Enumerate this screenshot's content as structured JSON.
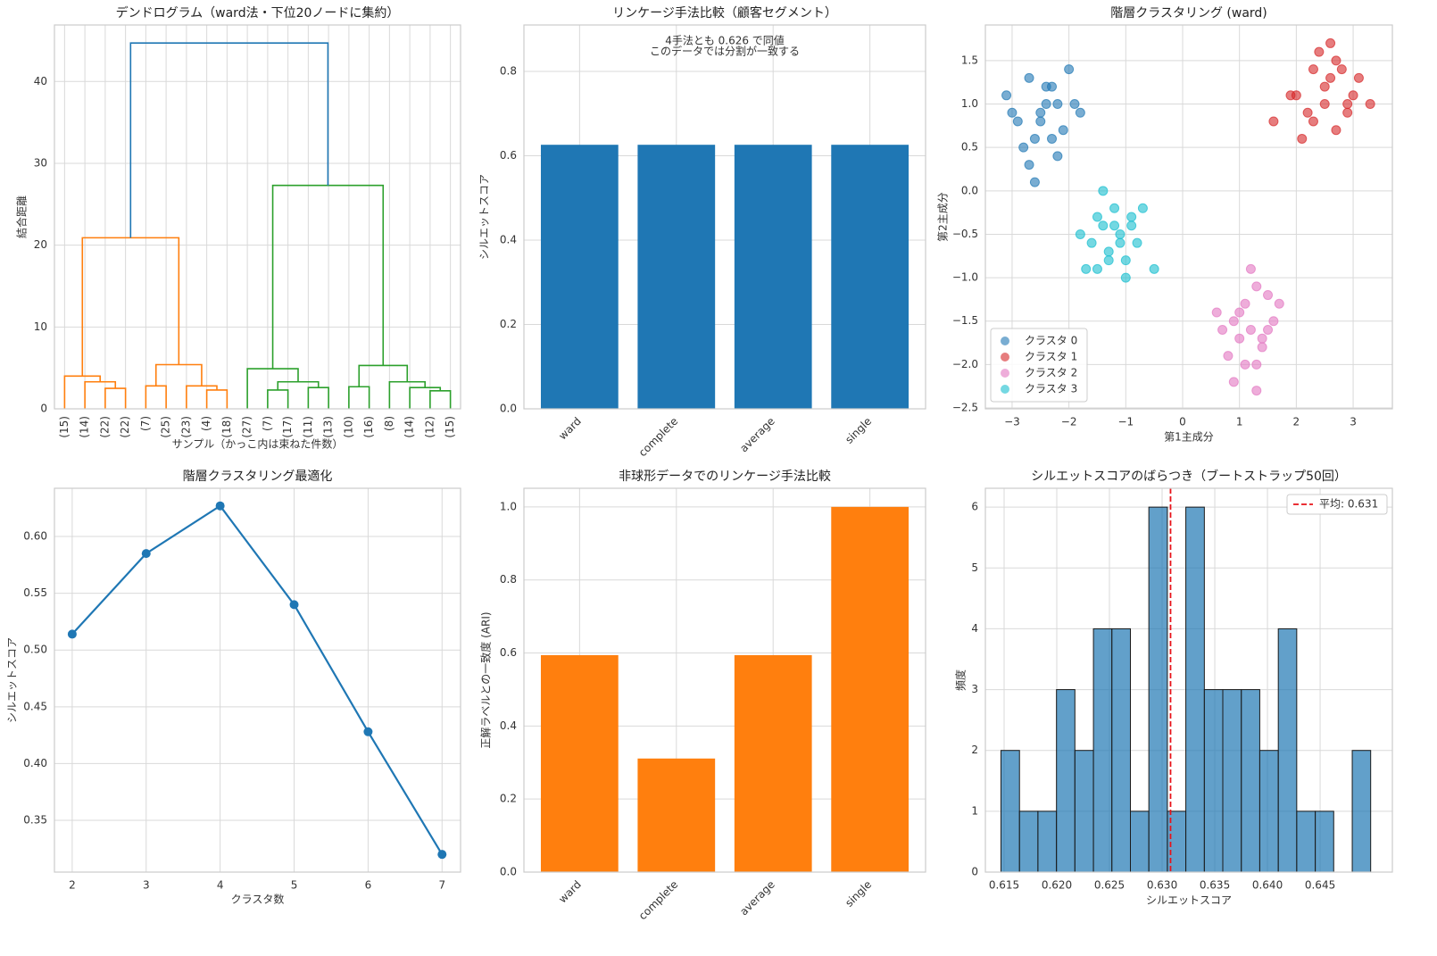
{
  "chart_data": [
    {
      "type": "dendrogram",
      "title": "デンドログラム（ward法・下位20ノードに集約）",
      "xlabel": "サンプル（かっこ内は束ねた件数）",
      "ylabel": "結合距離",
      "leaves": [
        "(15)",
        "(14)",
        "(22)",
        "(22)",
        "(7)",
        "(25)",
        "(23)",
        "(4)",
        "(18)",
        "(27)",
        "(7)",
        "(17)",
        "(11)",
        "(13)",
        "(10)",
        "(16)",
        "(8)",
        "(14)",
        "(12)",
        "(15)"
      ],
      "merges": [
        {
          "left": 2,
          "right": 3,
          "height": 2.5,
          "color": "#ff7f0e"
        },
        {
          "left": 1,
          "right": 20,
          "height": 3.3,
          "color": "#ff7f0e"
        },
        {
          "left": 0,
          "right": 21,
          "height": 4.0,
          "color": "#ff7f0e"
        },
        {
          "left": 4,
          "right": 5,
          "height": 2.8,
          "color": "#ff7f0e"
        },
        {
          "left": 7,
          "right": 8,
          "height": 2.3,
          "color": "#ff7f0e"
        },
        {
          "left": 6,
          "right": 24,
          "height": 2.8,
          "color": "#ff7f0e"
        },
        {
          "left": 23,
          "right": 25,
          "height": 5.4,
          "color": "#ff7f0e"
        },
        {
          "left": 22,
          "right": 26,
          "height": 20.9,
          "color": "#ff7f0e"
        },
        {
          "left": 10,
          "right": 11,
          "height": 2.3,
          "color": "#2ca02c"
        },
        {
          "left": 12,
          "right": 13,
          "height": 2.6,
          "color": "#2ca02c"
        },
        {
          "left": 28,
          "right": 29,
          "height": 3.3,
          "color": "#2ca02c"
        },
        {
          "left": 9,
          "right": 30,
          "height": 4.9,
          "color": "#2ca02c"
        },
        {
          "left": 14,
          "right": 15,
          "height": 2.7,
          "color": "#2ca02c"
        },
        {
          "left": 18,
          "right": 19,
          "height": 2.2,
          "color": "#2ca02c"
        },
        {
          "left": 17,
          "right": 33,
          "height": 2.6,
          "color": "#2ca02c"
        },
        {
          "left": 16,
          "right": 34,
          "height": 3.3,
          "color": "#2ca02c"
        },
        {
          "left": 32,
          "right": 35,
          "height": 5.3,
          "color": "#2ca02c"
        },
        {
          "left": 31,
          "right": 36,
          "height": 27.3,
          "color": "#2ca02c"
        },
        {
          "left": 27,
          "right": 37,
          "height": 44.7,
          "color": "#1f77b4"
        }
      ],
      "ylim": [
        0,
        46.9
      ],
      "yticks": [
        0,
        10,
        20,
        30,
        40
      ],
      "grid": true
    },
    {
      "type": "bar",
      "title": "リンケージ手法比較（顧客セグメント）",
      "ylabel": "シルエットスコア",
      "annotation": [
        "4手法とも 0.626 で同値",
        "このデータでは分割が一致する"
      ],
      "categories": [
        "ward",
        "complete",
        "average",
        "single"
      ],
      "values": [
        0.626,
        0.626,
        0.626,
        0.626
      ],
      "color": "#1f77b4",
      "ylim": [
        0,
        0.91
      ],
      "yticks": [
        {
          "value": 0,
          "label": "0.0"
        },
        0.2,
        0.4,
        0.6,
        0.8
      ],
      "grid": true
    },
    {
      "type": "scatter",
      "title": "階層クラスタリング (ward)",
      "xlabel": "第1主成分",
      "ylabel": "第2主成分",
      "series": [
        {
          "name": "クラスタ 0",
          "color": "#1f77b4",
          "x": [
            -3.1,
            -2.9,
            -2.7,
            -2.5,
            -2.3,
            -2.1,
            -1.9,
            -2.8,
            -2.6,
            -2.4,
            -2.2,
            -2.0,
            -3.0,
            -2.7,
            -2.5,
            -2.3,
            -2.6,
            -2.4,
            -2.2,
            -1.8
          ],
          "values": [
            1.1,
            0.8,
            1.3,
            0.9,
            1.2,
            0.7,
            1.0,
            0.5,
            0.6,
            1.0,
            0.4,
            1.4,
            0.9,
            0.3,
            0.8,
            0.6,
            0.1,
            1.2,
            1.0,
            0.9
          ]
        },
        {
          "name": "クラスタ 1",
          "color": "#d62728",
          "x": [
            1.6,
            1.9,
            2.1,
            2.3,
            2.5,
            2.7,
            2.9,
            3.1,
            2.2,
            2.4,
            2.6,
            2.8,
            3.0,
            2.0,
            2.3,
            2.5,
            2.7,
            2.9,
            2.6,
            3.3
          ],
          "values": [
            0.8,
            1.1,
            0.6,
            1.4,
            1.2,
            1.5,
            1.0,
            1.3,
            0.9,
            1.6,
            1.3,
            1.4,
            1.1,
            1.1,
            0.8,
            1.0,
            0.7,
            0.9,
            1.7,
            1.0
          ]
        },
        {
          "name": "クラスタ 2",
          "color": "#e377c2",
          "x": [
            0.6,
            0.8,
            0.9,
            1.0,
            1.1,
            1.2,
            1.3,
            1.4,
            1.5,
            1.6,
            0.9,
            1.1,
            1.3,
            1.5,
            1.7,
            1.0,
            1.2,
            1.4,
            0.7,
            1.3
          ],
          "values": [
            -1.4,
            -1.9,
            -1.5,
            -1.7,
            -1.3,
            -1.6,
            -2.0,
            -1.8,
            -1.2,
            -1.5,
            -2.2,
            -2.0,
            -1.1,
            -1.6,
            -1.3,
            -1.4,
            -0.9,
            -1.7,
            -1.6,
            -2.3
          ]
        },
        {
          "name": "クラスタ 3",
          "color": "#17becf",
          "x": [
            -1.8,
            -1.6,
            -1.5,
            -1.4,
            -1.3,
            -1.2,
            -1.1,
            -1.0,
            -0.9,
            -0.8,
            -1.7,
            -1.4,
            -1.2,
            -1.0,
            -0.7,
            -1.3,
            -1.1,
            -0.9,
            -0.5,
            -1.5
          ],
          "values": [
            -0.5,
            -0.6,
            -0.9,
            -0.4,
            -0.7,
            -0.2,
            -0.5,
            -0.8,
            -0.3,
            -0.6,
            -0.9,
            0.0,
            -0.4,
            -1.0,
            -0.2,
            -0.8,
            -0.6,
            -0.4,
            -0.9,
            -0.3
          ]
        }
      ],
      "xlim": [
        -3.47,
        3.69
      ],
      "xticks": [
        {
          "value": -3,
          "label": "−3"
        },
        {
          "value": -2,
          "label": "−2"
        },
        {
          "value": -1,
          "label": "−1"
        },
        0,
        1,
        2,
        3
      ],
      "ylim": [
        -2.51,
        1.91
      ],
      "yticks": [
        {
          "value": -2.5,
          "label": "−2.5"
        },
        {
          "value": -2,
          "label": "−2.0"
        },
        {
          "value": -1.5,
          "label": "−1.5"
        },
        {
          "value": -1,
          "label": "−1.0"
        },
        {
          "value": -0.5,
          "label": "−0.5"
        },
        {
          "value": 0,
          "label": "0.0"
        },
        0.5,
        {
          "value": 1,
          "label": "1.0"
        },
        1.5
      ],
      "grid": true,
      "legend": "lower left"
    },
    {
      "type": "line",
      "title": "階層クラスタリング最適化",
      "xlabel": "クラスタ数",
      "ylabel": "シルエットスコア",
      "x": [
        2,
        3,
        4,
        5,
        6,
        7
      ],
      "values": [
        0.514,
        0.585,
        0.627,
        0.54,
        0.428,
        0.32
      ],
      "color": "#1f77b4",
      "xlim": [
        1.76,
        7.25
      ],
      "xticks": [
        2,
        3,
        4,
        5,
        6,
        7
      ],
      "ylim": [
        0.3044,
        0.6425
      ],
      "yticks": [
        0.35,
        {
          "value": 0.4,
          "label": "0.40"
        },
        0.45,
        {
          "value": 0.5,
          "label": "0.50"
        },
        0.55,
        {
          "value": 0.6,
          "label": "0.60"
        }
      ],
      "grid": true
    },
    {
      "type": "bar",
      "title": "非球形データでのリンケージ手法比較",
      "ylabel": "正解ラベルとの一致度 (ARI)",
      "categories": [
        "ward",
        "complete",
        "average",
        "single"
      ],
      "values": [
        0.594,
        0.311,
        0.594,
        1.0
      ],
      "color": "#ff7f0e",
      "ylim": [
        0,
        1.051
      ],
      "yticks": [
        {
          "value": 0,
          "label": "0.0"
        },
        0.2,
        0.4,
        0.6,
        0.8,
        {
          "value": 1,
          "label": "1.0"
        }
      ],
      "grid": true
    },
    {
      "type": "histogram",
      "title": "シルエットスコアのばらつき（ブートストラップ50回）",
      "xlabel": "シルエットスコア",
      "ylabel": "頻度",
      "bins": [
        0.6147,
        0.61646,
        0.61821,
        0.61997,
        0.62172,
        0.62348,
        0.62523,
        0.62699,
        0.62874,
        0.6305,
        0.63225,
        0.63401,
        0.63576,
        0.63752,
        0.63927,
        0.64103,
        0.64278,
        0.64454,
        0.64629,
        0.64805,
        0.6498
      ],
      "values": [
        2,
        1,
        1,
        3,
        2,
        4,
        4,
        1,
        6,
        1,
        6,
        3,
        3,
        3,
        2,
        4,
        1,
        1,
        0,
        2
      ],
      "color": "#1f77b4",
      "edgecolor": "#1a1a1a",
      "mean": {
        "value": 0.6308,
        "label": "平均: 0.631",
        "color": "#e8131a"
      },
      "xlim": [
        0.61322,
        0.65186
      ],
      "xticks": [
        0.615,
        {
          "value": 0.62,
          "label": "0.620"
        },
        0.625,
        {
          "value": 0.63,
          "label": "0.630"
        },
        0.635,
        {
          "value": 0.64,
          "label": "0.640"
        },
        0.645
      ],
      "ylim": [
        0,
        6.31
      ],
      "yticks": [
        0,
        1,
        2,
        3,
        4,
        5,
        6
      ],
      "grid": true,
      "legend": "upper right"
    }
  ]
}
